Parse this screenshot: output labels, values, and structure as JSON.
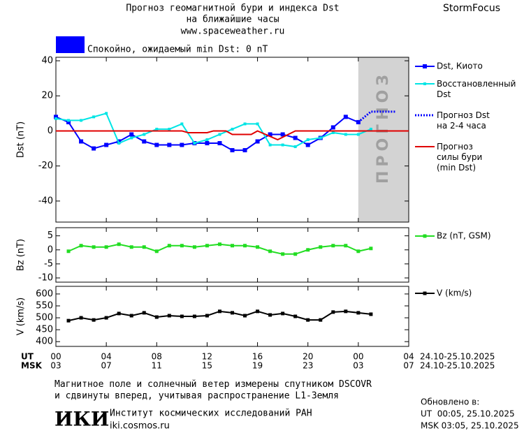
{
  "header": {
    "title": "Прогноз геомагнитной бури и индекса Dst",
    "subtitle": "на ближайшие часы",
    "url": "www.spaceweather.ru",
    "brand": "StormFocus"
  },
  "status": {
    "color": "#0000ff",
    "text": "Спокойно, ожидаемый min Dst: 0 nT"
  },
  "time_axis": {
    "xlim": [
      0,
      28
    ],
    "ut_label": "UT",
    "msk_label": "MSK",
    "ut_ticks": [
      {
        "value": 0,
        "label": "00"
      },
      {
        "value": 4,
        "label": "04"
      },
      {
        "value": 8,
        "label": "08"
      },
      {
        "value": 12,
        "label": "12"
      },
      {
        "value": 16,
        "label": "16"
      },
      {
        "value": 20,
        "label": "20"
      },
      {
        "value": 24,
        "label": "00"
      },
      {
        "value": 28,
        "label": "04"
      }
    ],
    "msk_ticks": [
      {
        "value": 0,
        "label": "03"
      },
      {
        "value": 4,
        "label": "07"
      },
      {
        "value": 8,
        "label": "11"
      },
      {
        "value": 12,
        "label": "15"
      },
      {
        "value": 16,
        "label": "19"
      },
      {
        "value": 20,
        "label": "23"
      },
      {
        "value": 24,
        "label": "03"
      },
      {
        "value": 28,
        "label": "07"
      }
    ],
    "ut_range": "24.10-25.10.2025",
    "msk_range": "24.10-25.10.2025"
  },
  "chart_data": [
    {
      "type": "line",
      "ylabel": "Dst (nT)",
      "ylim": [
        -52,
        42
      ],
      "yticks": [
        -40,
        -20,
        0,
        20,
        40
      ],
      "forecast_region": {
        "label": "ПРОГНОЗ",
        "x": [
          24,
          28
        ],
        "color": "#d3d3d3"
      },
      "series": [
        {
          "name": "Dst, Киото",
          "color": "#0000ff",
          "style": "solid",
          "marker": 6,
          "x": [
            0,
            1,
            2,
            3,
            4,
            5,
            6,
            7,
            8,
            9,
            10,
            11,
            12,
            13,
            14,
            15,
            16,
            17,
            18,
            19,
            20,
            21,
            22,
            23,
            24
          ],
          "values": [
            8,
            5,
            -6,
            -10,
            -8,
            -6,
            -2,
            -6,
            -8,
            -8,
            -8,
            -7,
            -7,
            -7,
            -11,
            -11,
            -6,
            -2,
            -2,
            -4,
            -8,
            -4,
            2,
            8,
            5
          ]
        },
        {
          "name": "Восстановленный\nDst",
          "color": "#00e5e5",
          "style": "solid",
          "marker": 4,
          "x": [
            0,
            1,
            2,
            3,
            4,
            5,
            6,
            7,
            8,
            9,
            10,
            11,
            12,
            13,
            14,
            15,
            16,
            17,
            18,
            19,
            20,
            21,
            22,
            23,
            24,
            25
          ],
          "values": [
            7,
            6,
            6,
            8,
            10,
            -7,
            -4,
            -2,
            1,
            1,
            4,
            -7,
            -5,
            -2,
            1,
            4,
            4,
            -8,
            -8,
            -9,
            -5,
            -4,
            -1,
            -2,
            -2,
            1
          ]
        },
        {
          "name": "Прогноз Dst\nна 2-4 часа",
          "color": "#0000ff",
          "style": "dotted",
          "marker": 0,
          "x": [
            24,
            25,
            26,
            27
          ],
          "values": [
            5,
            11,
            11,
            11
          ]
        },
        {
          "name": "Прогноз\nсилы бури\n(min Dst)",
          "color": "#e00000",
          "style": "solid",
          "marker": 0,
          "x": [
            0,
            10,
            10.5,
            12,
            12.5,
            13.5,
            14,
            15.5,
            16,
            17.6,
            19,
            28
          ],
          "values": [
            0,
            0,
            -1,
            -1,
            0,
            0,
            -2,
            -2,
            0,
            -5,
            0,
            0
          ]
        }
      ]
    },
    {
      "type": "line",
      "ylabel": "Bz (nT)",
      "ylim": [
        -11.5,
        7.9
      ],
      "yticks": [
        -10,
        -5,
        0,
        5
      ],
      "series": [
        {
          "name": "Bz (nT, GSM)",
          "color": "#22dd22",
          "style": "solid",
          "marker": 5,
          "x": [
            1,
            2,
            3,
            4,
            5,
            6,
            7,
            8,
            9,
            10,
            11,
            12,
            13,
            14,
            15,
            16,
            17,
            18,
            19,
            20,
            21,
            22,
            23,
            24,
            25
          ],
          "values": [
            -0.5,
            1.5,
            1,
            1,
            2,
            1,
            1,
            -0.5,
            1.5,
            1.5,
            1,
            1.5,
            2,
            1.5,
            1.5,
            1,
            -0.5,
            -1.5,
            -1.5,
            0,
            1,
            1.5,
            1.5,
            -0.5,
            0.5
          ]
        }
      ]
    },
    {
      "type": "line",
      "ylabel": "V (km/s)",
      "ylim": [
        380,
        632
      ],
      "yticks": [
        400,
        450,
        500,
        550,
        600
      ],
      "series": [
        {
          "name": "V (km/s)",
          "color": "#000000",
          "style": "solid",
          "marker": 5,
          "x": [
            1,
            2,
            3,
            4,
            5,
            6,
            7,
            8,
            9,
            10,
            11,
            12,
            13,
            14,
            15,
            16,
            17,
            18,
            19,
            20,
            21,
            22,
            23,
            24,
            25
          ],
          "values": [
            488,
            500,
            491,
            500,
            518,
            509,
            521,
            503,
            509,
            506,
            506,
            509,
            527,
            521,
            509,
            527,
            512,
            518,
            506,
            491,
            491,
            524,
            527,
            521,
            515
          ]
        }
      ]
    }
  ],
  "footer": {
    "note": "Магнитное поле и солнечный ветер измерены спутником DSCOVR\nи сдвинуты вперед, учитывая распространение L1-Земля",
    "logo": "ИКИ",
    "institute": "Институт космических исследований РАН",
    "site": "iki.cosmos.ru",
    "updated": "Обновлено в:",
    "updated_ut": "UT  00:05, 25.10.2025",
    "updated_msk": "MSK 03:05, 25.10.2025"
  }
}
